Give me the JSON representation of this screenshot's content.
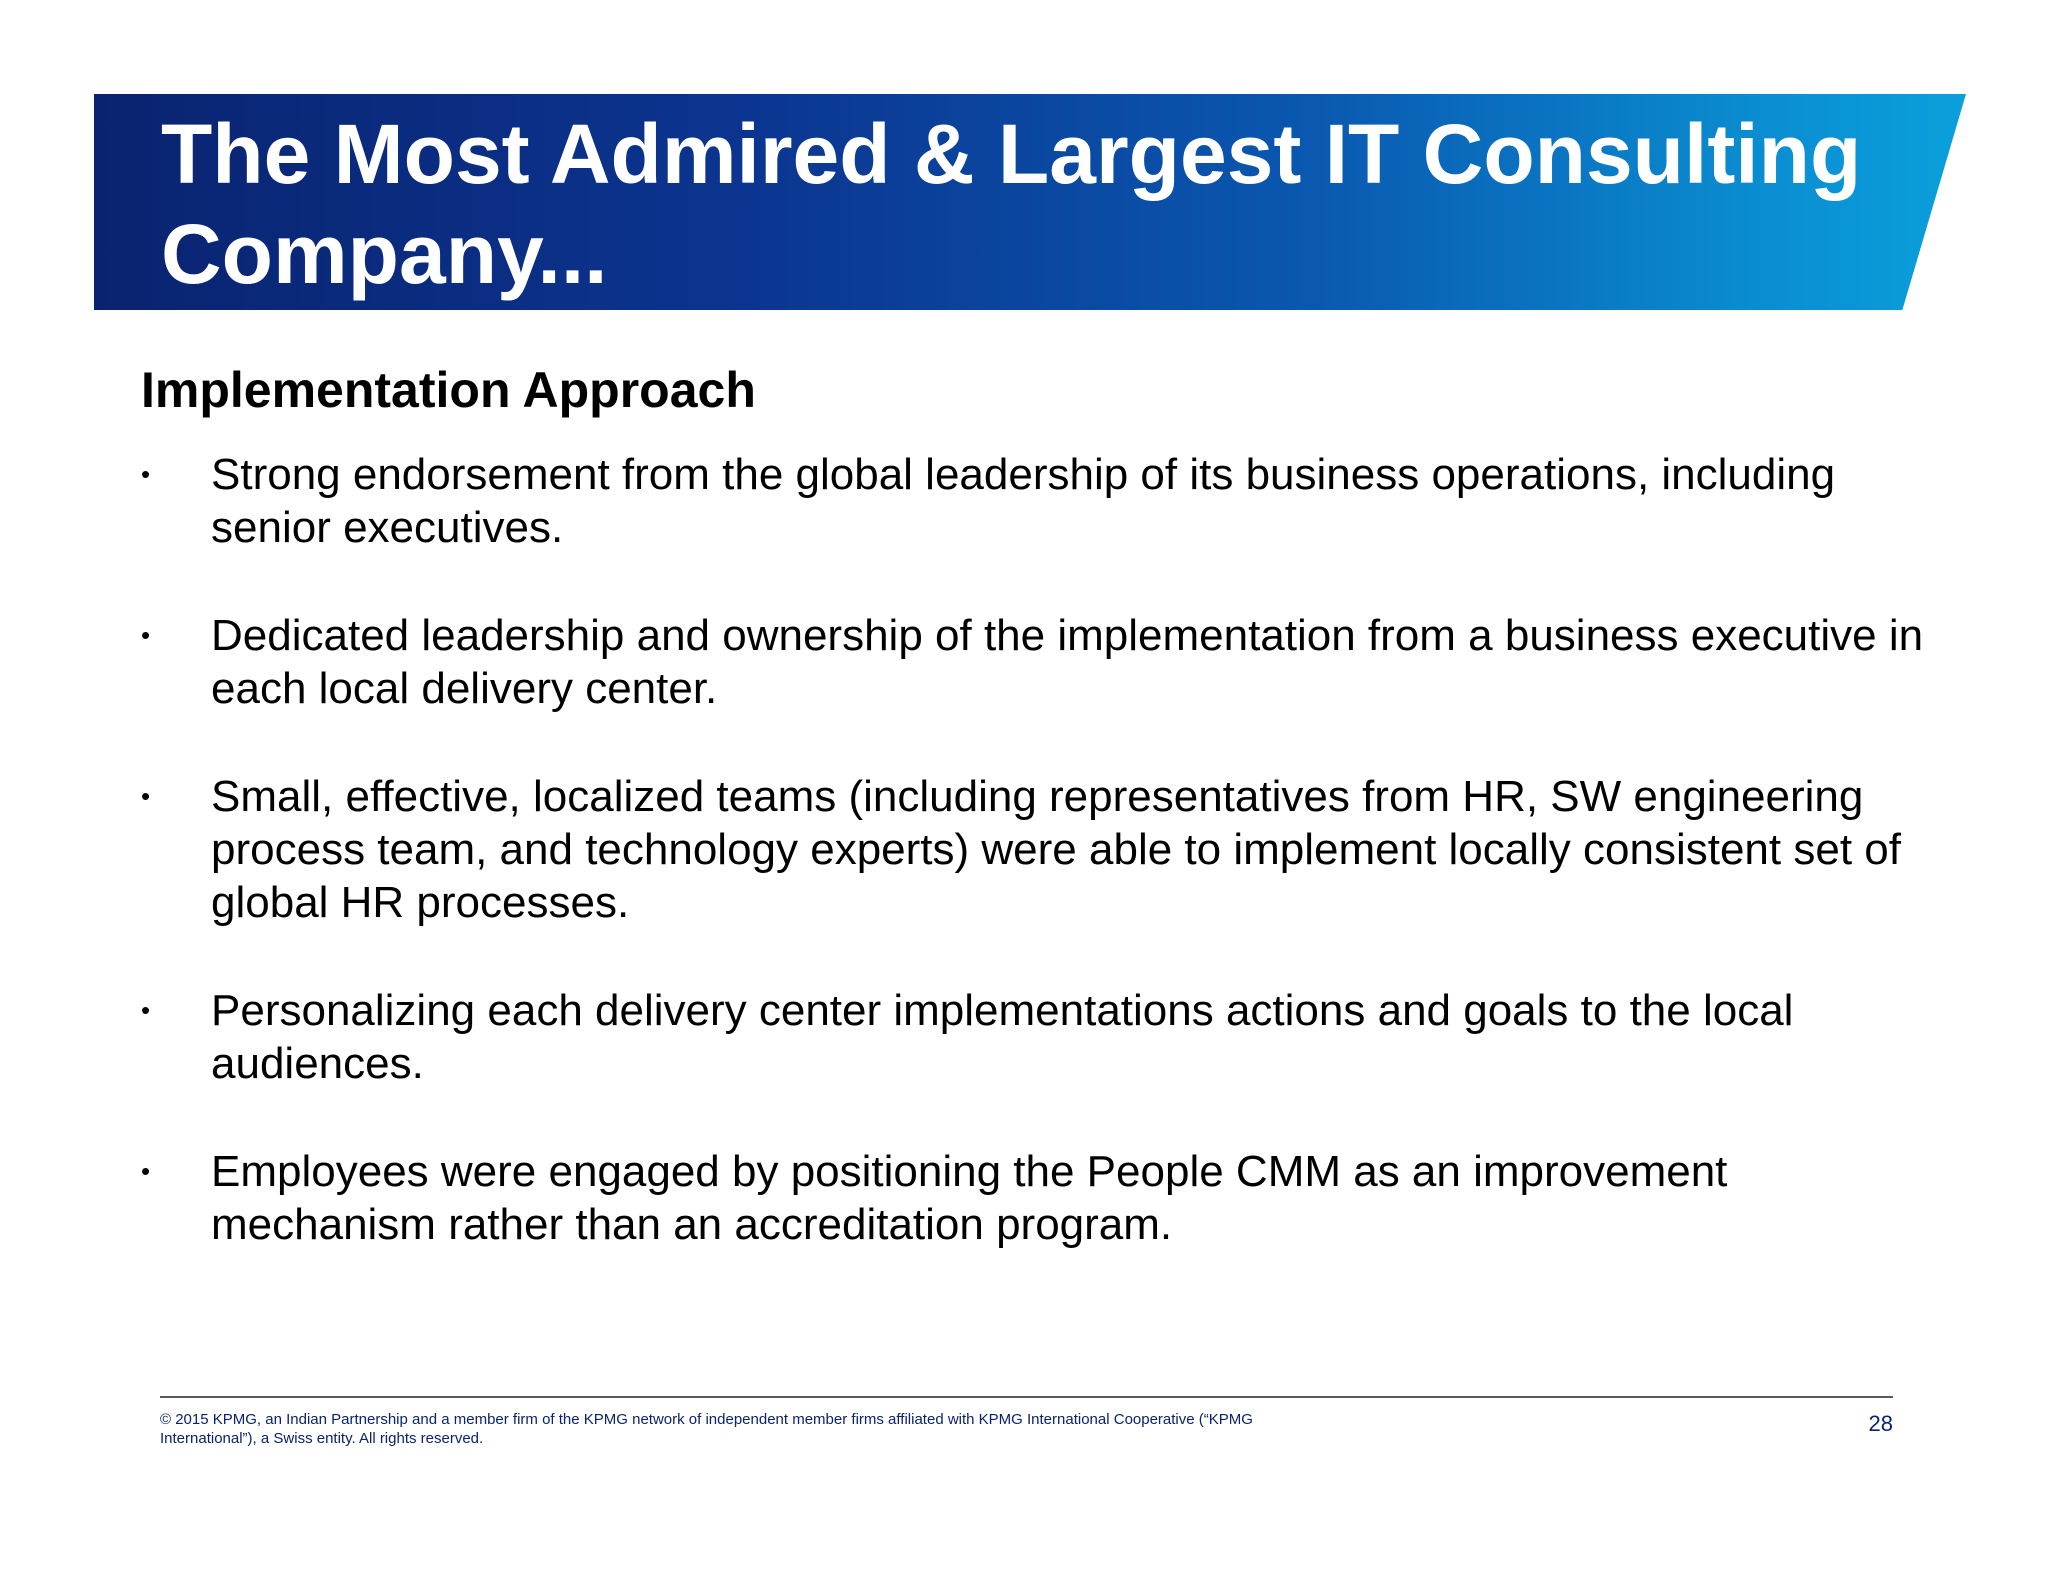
{
  "slide": {
    "title": "The Most Admired & Largest IT Consulting Company...",
    "section_heading": "Implementation Approach",
    "bullet_symbol": "•",
    "bullets": [
      "Strong endorsement from the global leadership of its business operations, including senior executives.",
      "Dedicated leadership and ownership of the implementation from a business executive in each local delivery center.",
      "Small, effective, localized teams (including representatives from HR, SW engineering process team, and technology experts) were able to implement locally consistent set of global HR processes.",
      "Personalizing each delivery center implementations actions and goals to the local audiences.",
      "Employees were engaged by positioning the People CMM as an improvement mechanism rather than an accreditation program."
    ]
  },
  "footer": {
    "copyright": "© 2015 KPMG, an Indian Partnership and a member firm of the KPMG network of independent member firms affiliated with KPMG International Cooperative (“KPMG International”), a Swiss entity. All rights reserved.",
    "page_number": "28"
  },
  "colors": {
    "banner_start": "#0a2370",
    "banner_end": "#0aa0dc",
    "footer_text": "#0a2370"
  }
}
